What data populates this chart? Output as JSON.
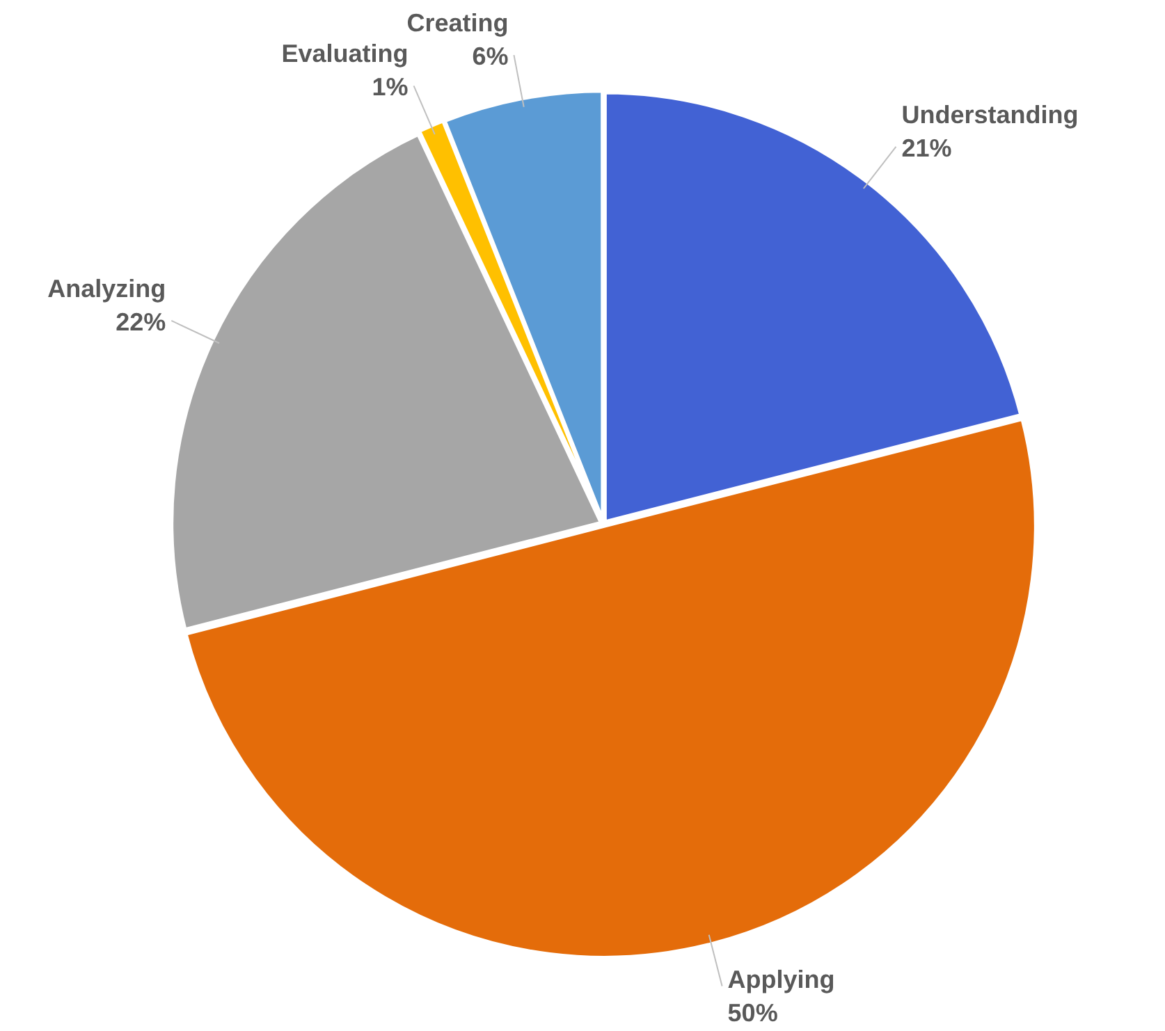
{
  "chart_data": {
    "type": "pie",
    "categories": [
      "Understanding",
      "Applying",
      "Analyzing",
      "Evaluating",
      "Creating"
    ],
    "values": [
      21,
      50,
      22,
      1,
      6
    ],
    "value_labels": [
      "21%",
      "50%",
      "22%",
      "1%",
      "6%"
    ],
    "colors": [
      "#4262d4",
      "#e46c0a",
      "#a6a6a6",
      "#ffc000",
      "#5b9bd5"
    ],
    "legend": false
  }
}
